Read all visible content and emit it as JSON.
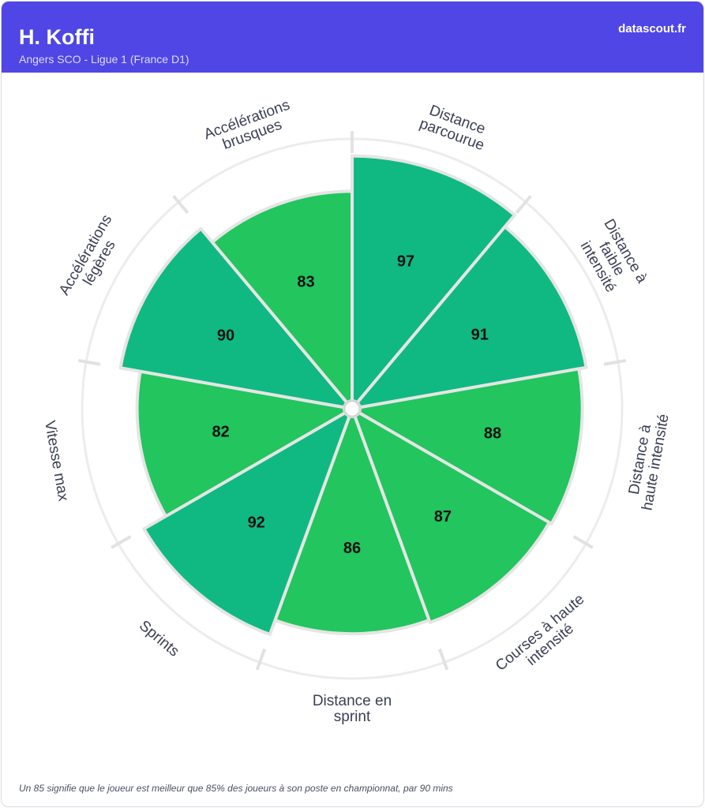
{
  "header": {
    "player_name": "H. Koffi",
    "club_line": "Angers SCO - Ligue 1 (France D1)",
    "brand": "datascout.fr"
  },
  "footnote": "Un 85 signifie que le joueur est meilleur que 85% des joueurs à son poste en championnat, par 90 mins",
  "colors": {
    "header_bg": "#4f46e5",
    "bar_teal": "#10b981",
    "bar_green": "#22c55e",
    "label_text": "#3a3f55"
  },
  "chart_data": {
    "type": "polar-bar",
    "range": [
      0,
      100
    ],
    "categories": [
      "Distance parcourue",
      "Distance à faible intensité",
      "Distance à haute intensité",
      "Courses à haute intensité",
      "Distance en sprint",
      "Sprints",
      "Vitesse max",
      "Accélérations légères",
      "Accélérations brusques"
    ],
    "values": [
      97,
      91,
      88,
      87,
      86,
      92,
      82,
      90,
      83
    ],
    "colors": [
      "#10b981",
      "#10b981",
      "#22c55e",
      "#22c55e",
      "#22c55e",
      "#10b981",
      "#22c55e",
      "#10b981",
      "#22c55e"
    ],
    "label_lines": [
      [
        "Distance",
        "parcourue"
      ],
      [
        "Distance à",
        "faible",
        "intensité"
      ],
      [
        "Distance à",
        "haute intensité"
      ],
      [
        "Courses à haute",
        "intensité"
      ],
      [
        "Distance en",
        "sprint"
      ],
      [
        "Sprints"
      ],
      [
        "Vitesse max"
      ],
      [
        "Accélérations",
        "légères"
      ],
      [
        "Accélérations",
        "brusques"
      ]
    ]
  }
}
